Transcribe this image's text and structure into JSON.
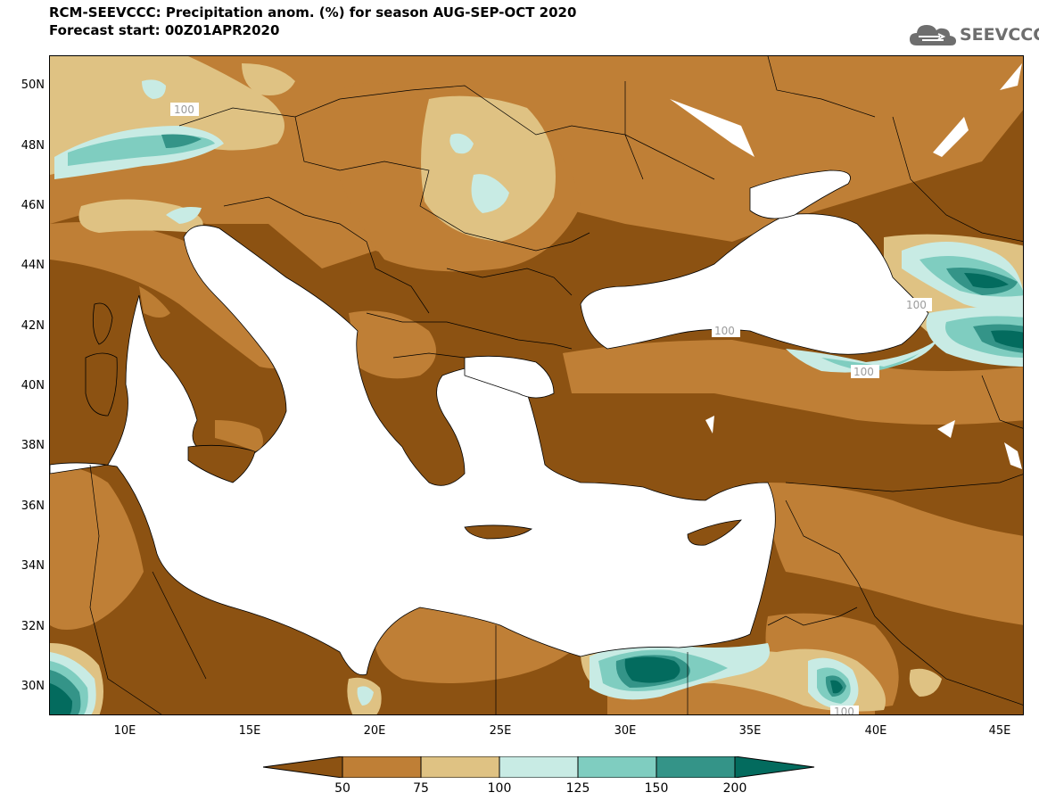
{
  "header": {
    "title": "RCM-SEEVCCC: Precipitation anom. (%) for season AUG-SEP-OCT 2020",
    "subtitle": "Forecast start: 00Z01APR2020"
  },
  "logo": {
    "text": "SEEVCCC",
    "icon": "cloud-icon"
  },
  "map": {
    "lon_range": [
      7,
      46
    ],
    "lat_range": [
      29,
      51
    ],
    "y_ticks": [
      "50N",
      "48N",
      "46N",
      "44N",
      "42N",
      "40N",
      "38N",
      "36N",
      "34N",
      "32N",
      "30N"
    ],
    "x_ticks": [
      "10E",
      "15E",
      "20E",
      "25E",
      "30E",
      "35E",
      "40E",
      "45E"
    ],
    "contour_labels": [
      "100",
      "100",
      "100",
      "100",
      "100"
    ]
  },
  "colorbar": {
    "levels": [
      "50",
      "75",
      "100",
      "125",
      "150",
      "200"
    ],
    "colors": [
      "#8c5212",
      "#bf7f36",
      "#dfc283",
      "#c8ebe4",
      "#7fcdc0",
      "#349488",
      "#036b5e"
    ]
  }
}
